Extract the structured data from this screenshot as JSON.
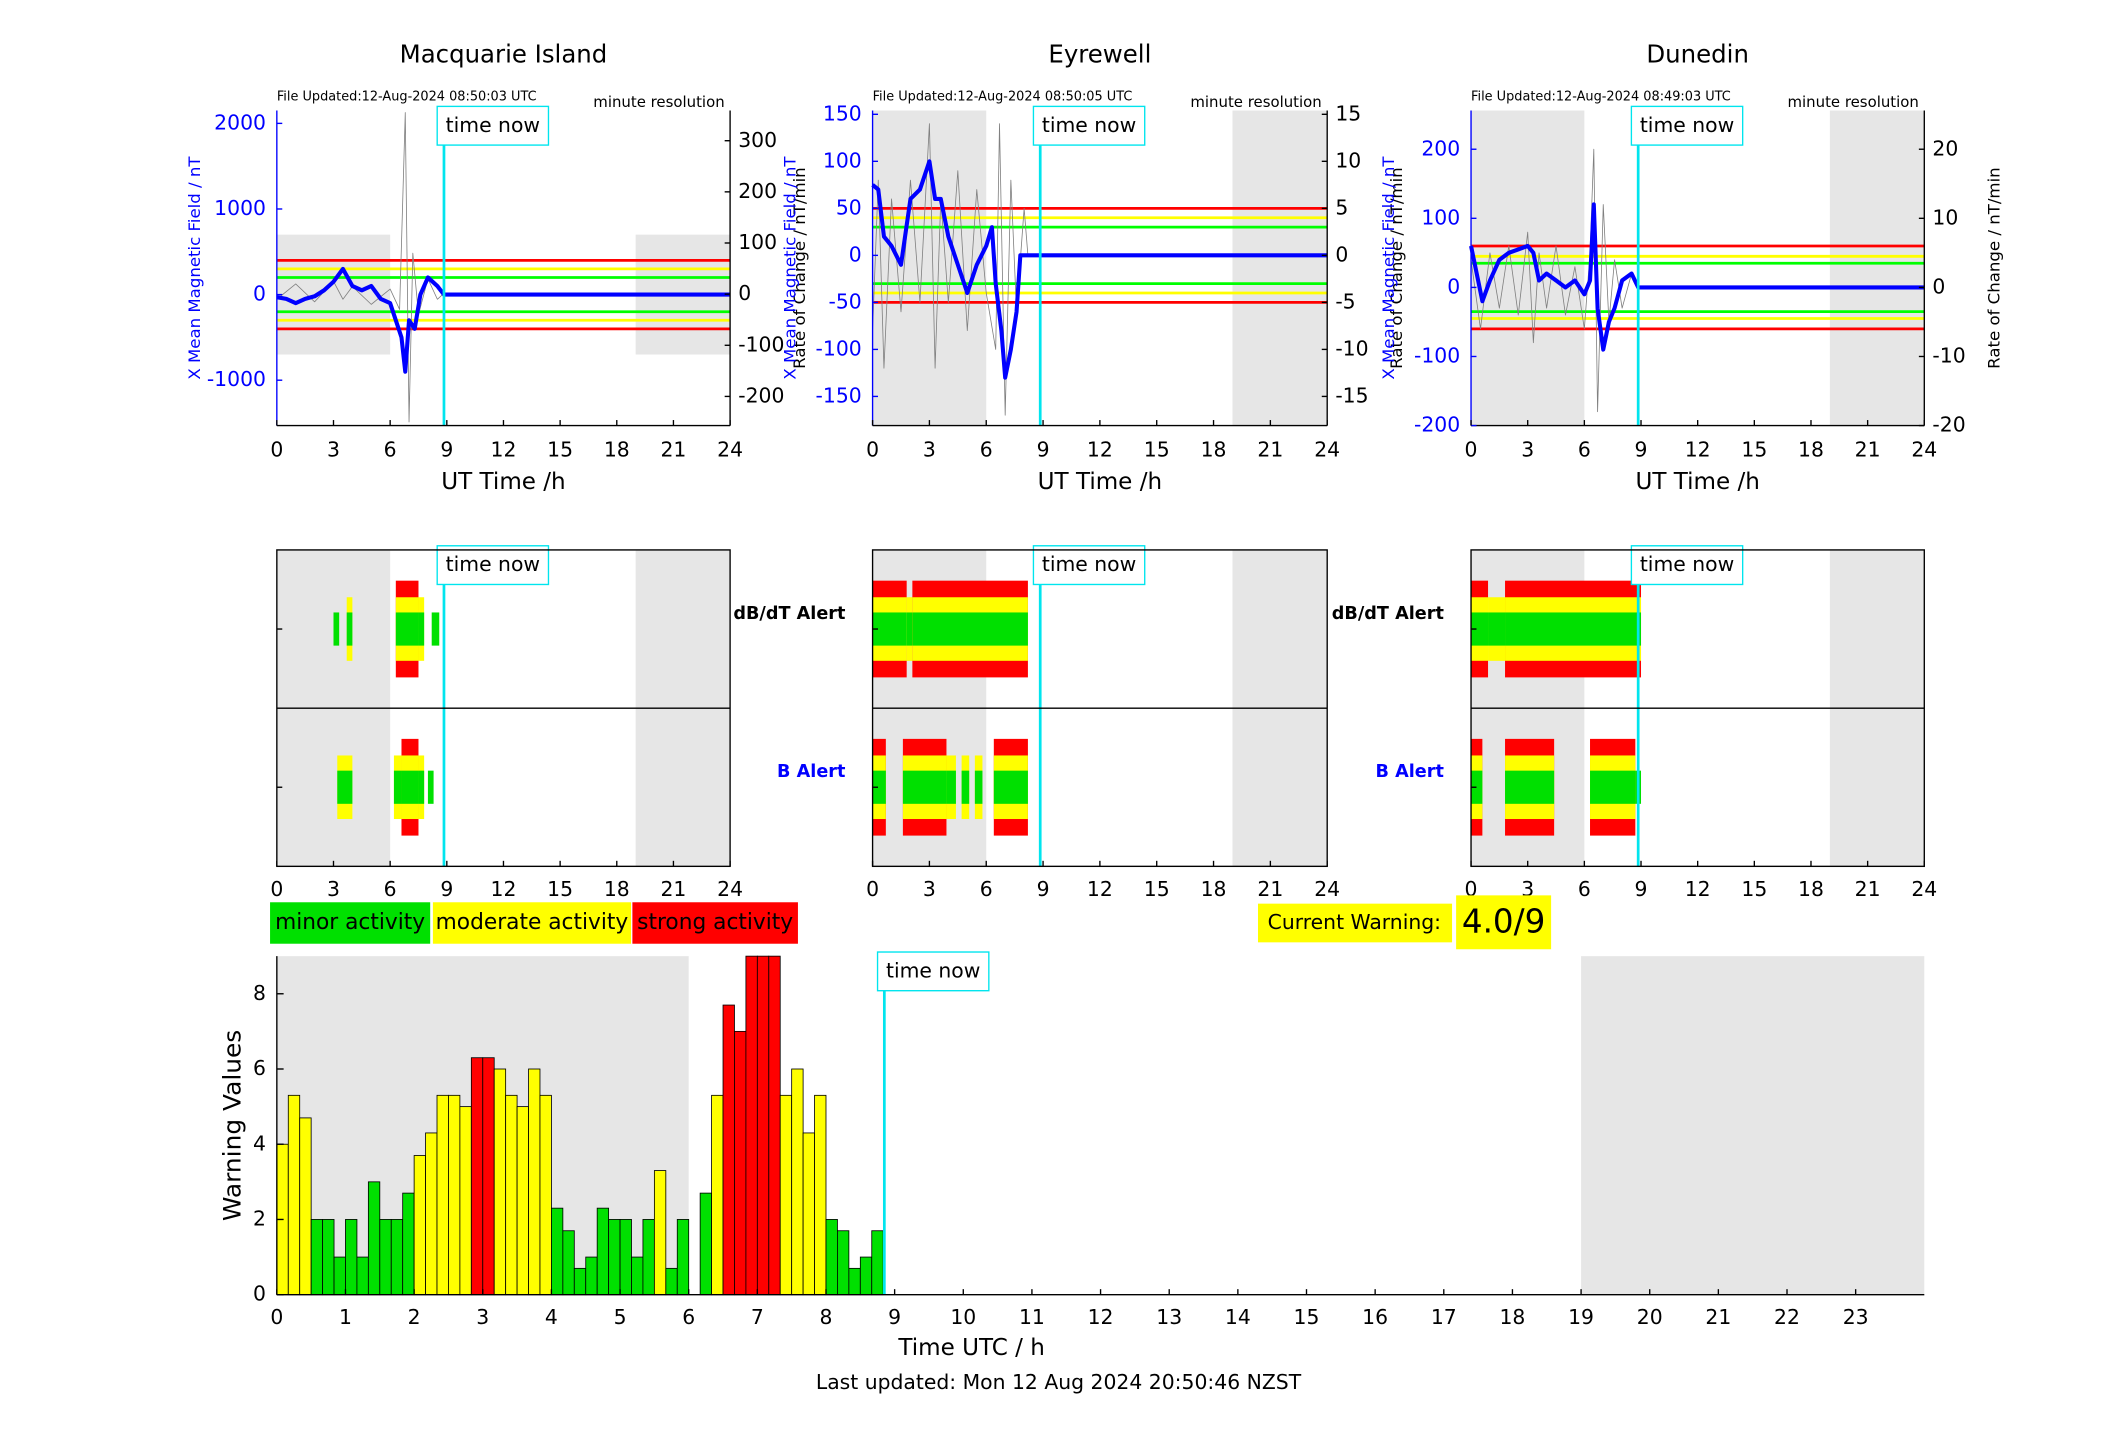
{
  "chart_data": [
    {
      "type": "line",
      "title": "Macquarie Island",
      "file_updated": "File Updated:12-Aug-2024 08:50:03 UTC",
      "resolution": "minute resolution",
      "time_now_label": "time now",
      "time_now": 8.85,
      "time_now_color": "#00e5ee",
      "ylabel": "X Mean Magnetic Field / nT",
      "y2label": "Rate of Change / nT/min",
      "xlabel": "UT Time /h",
      "xlim": [
        0,
        24
      ],
      "xticks": [
        0,
        3,
        6,
        9,
        12,
        15,
        18,
        21,
        24
      ],
      "ylim": [
        -1530,
        2150
      ],
      "yticks": [
        -1000,
        0,
        1000,
        2000
      ],
      "y2lim": [
        -257,
        359
      ],
      "y2ticks": [
        -200,
        -100,
        0,
        100,
        200,
        300
      ],
      "shading": [
        [
          0,
          6
        ],
        [
          19,
          24
        ]
      ],
      "shade_ylim": [
        -700,
        700
      ],
      "shading_color": "#e6e6e6",
      "thresholds": [
        {
          "color": "#ff0000",
          "values": [
            400,
            -400
          ]
        },
        {
          "color": "#ffff00",
          "values": [
            300,
            -300
          ]
        },
        {
          "color": "#00ff00",
          "values": [
            200,
            -200
          ]
        }
      ],
      "series": [
        {
          "color": "#808080",
          "axis": "y2",
          "x": [
            0,
            1,
            2,
            3,
            3.5,
            4,
            5,
            6,
            6.5,
            6.8,
            7,
            7.2,
            7.5,
            8,
            8.5,
            8.8
          ],
          "values": [
            -10,
            20,
            -15,
            25,
            -10,
            15,
            -20,
            10,
            -30,
            355,
            -250,
            80,
            -40,
            30,
            -10,
            0
          ]
        },
        {
          "color": "#0000ff",
          "axis": "y",
          "x": [
            0,
            0.5,
            1,
            1.5,
            2,
            2.5,
            3,
            3.5,
            4,
            4.5,
            5,
            5.5,
            6,
            6.3,
            6.6,
            6.8,
            7,
            7.3,
            7.6,
            8,
            8.5,
            8.85,
            24
          ],
          "values": [
            -30,
            -50,
            -100,
            -50,
            -20,
            50,
            150,
            300,
            100,
            50,
            100,
            -50,
            -100,
            -300,
            -500,
            -900,
            -300,
            -400,
            0,
            200,
            100,
            0,
            0
          ]
        }
      ]
    },
    {
      "type": "line",
      "title": "Eyrewell",
      "file_updated": "File Updated:12-Aug-2024 08:50:05 UTC",
      "resolution": "minute resolution",
      "time_now_label": "time now",
      "time_now": 8.85,
      "time_now_color": "#00e5ee",
      "ylabel": "X Mean Magnetic Field / nT",
      "y2label": "Rate of Change / nT/min",
      "xlabel": "UT Time /h",
      "xlim": [
        0,
        24
      ],
      "xticks": [
        0,
        3,
        6,
        9,
        12,
        15,
        18,
        21,
        24
      ],
      "ylim": [
        -181,
        154
      ],
      "yticks": [
        -150,
        -100,
        -50,
        0,
        50,
        100,
        150
      ],
      "y2lim": [
        -18.1,
        15.4
      ],
      "y2ticks": [
        -15,
        -10,
        -5,
        0,
        5,
        10,
        15
      ],
      "shading": [
        [
          0,
          6
        ],
        [
          19,
          24
        ]
      ],
      "shading_color": "#e6e6e6",
      "thresholds": [
        {
          "color": "#ff0000",
          "values": [
            50,
            -50
          ]
        },
        {
          "color": "#ffff00",
          "values": [
            40,
            -40
          ]
        },
        {
          "color": "#00ff00",
          "values": [
            30,
            -30
          ]
        }
      ],
      "series": [
        {
          "color": "#808080",
          "axis": "y2",
          "x": [
            0,
            0.3,
            0.6,
            1,
            1.5,
            2,
            2.5,
            3,
            3.3,
            3.6,
            4,
            4.5,
            5,
            5.5,
            6,
            6.5,
            6.7,
            7,
            7.3,
            7.6,
            8,
            8.2
          ],
          "values": [
            -8,
            8,
            -12,
            6,
            -6,
            8,
            -5,
            14,
            -12,
            6,
            -5,
            9,
            -8,
            7,
            -4,
            -10,
            14,
            -17,
            8,
            -6,
            5,
            0
          ]
        },
        {
          "color": "#0000ff",
          "axis": "y",
          "x": [
            0,
            0.3,
            0.6,
            1,
            1.5,
            2,
            2.5,
            3,
            3.3,
            3.6,
            4,
            4.5,
            5,
            5.5,
            6,
            6.3,
            6.5,
            6.8,
            7,
            7.3,
            7.6,
            7.8,
            24
          ],
          "values": [
            75,
            70,
            20,
            10,
            -10,
            60,
            70,
            100,
            60,
            60,
            20,
            -10,
            -40,
            -10,
            10,
            30,
            -30,
            -80,
            -130,
            -100,
            -60,
            0,
            0
          ]
        }
      ]
    },
    {
      "type": "line",
      "title": "Dunedin",
      "file_updated": "File Updated:12-Aug-2024 08:49:03 UTC",
      "resolution": "minute resolution",
      "time_now_label": "time now",
      "time_now": 8.85,
      "time_now_color": "#00e5ee",
      "ylabel": "X Mean Magnetic Field / nT",
      "y2label": "Rate of Change / nT/min",
      "xlabel": "UT Time /h",
      "xlim": [
        0,
        24
      ],
      "xticks": [
        0,
        3,
        6,
        9,
        12,
        15,
        18,
        21,
        24
      ],
      "ylim": [
        -200,
        256
      ],
      "yticks": [
        -200,
        -100,
        0,
        100,
        200
      ],
      "y2lim": [
        -20,
        25.6
      ],
      "y2ticks": [
        -20,
        -10,
        0,
        10,
        20
      ],
      "shading": [
        [
          0,
          6
        ],
        [
          19,
          24
        ]
      ],
      "shading_color": "#e6e6e6",
      "thresholds": [
        {
          "color": "#ff0000",
          "values": [
            60,
            -60
          ]
        },
        {
          "color": "#ffff00",
          "values": [
            45,
            -45
          ]
        },
        {
          "color": "#00ff00",
          "values": [
            35,
            -35
          ]
        }
      ],
      "series": [
        {
          "color": "#808080",
          "axis": "y2",
          "x": [
            0,
            0.5,
            1,
            1.5,
            2,
            2.5,
            3,
            3.3,
            3.6,
            4,
            4.5,
            5,
            5.5,
            6,
            6.3,
            6.5,
            6.7,
            7,
            7.3,
            7.6,
            8,
            8.5,
            8.85
          ],
          "values": [
            4,
            -6,
            5,
            -3,
            6,
            -4,
            8,
            -8,
            5,
            -3,
            6,
            -4,
            3,
            -6,
            5,
            20,
            -18,
            12,
            -5,
            4,
            -3,
            2,
            0
          ]
        },
        {
          "color": "#0000ff",
          "axis": "y",
          "x": [
            0,
            0.3,
            0.6,
            1,
            1.5,
            2,
            2.5,
            3,
            3.3,
            3.6,
            4,
            4.5,
            5,
            5.5,
            6,
            6.3,
            6.5,
            6.7,
            7,
            7.3,
            7.6,
            8,
            8.5,
            8.85,
            24
          ],
          "values": [
            60,
            20,
            -20,
            10,
            40,
            50,
            55,
            60,
            50,
            10,
            20,
            10,
            0,
            10,
            -10,
            10,
            120,
            -30,
            -90,
            -50,
            -30,
            10,
            20,
            0,
            0
          ]
        }
      ]
    },
    {
      "type": "alert",
      "time_now_label": "time now",
      "time_now": 8.85,
      "time_now_color": "#00e5ee",
      "xlim": [
        0,
        24
      ],
      "xticks": [
        0,
        3,
        6,
        9,
        12,
        15,
        18,
        21,
        24
      ],
      "shading": [
        [
          0,
          6
        ],
        [
          19,
          24
        ]
      ],
      "shading_color": "#e6e6e6",
      "alerts": [
        [
          [
            3.0,
            3.3,
            1
          ],
          [
            3.7,
            4.0,
            2
          ],
          [
            6.3,
            7.5,
            3
          ],
          [
            7.5,
            7.8,
            2
          ],
          [
            8.2,
            8.6,
            1
          ]
        ],
        [
          [
            3.2,
            4.0,
            2
          ],
          [
            6.2,
            6.6,
            2
          ],
          [
            6.6,
            7.5,
            3
          ],
          [
            7.5,
            7.8,
            2
          ],
          [
            8.0,
            8.3,
            1
          ]
        ]
      ]
    },
    {
      "type": "alert",
      "time_now_label": "time now",
      "time_now": 8.85,
      "time_now_color": "#00e5ee",
      "rows": [
        "dB/dT Alert",
        "B Alert"
      ],
      "xlim": [
        0,
        24
      ],
      "xticks": [
        0,
        3,
        6,
        9,
        12,
        15,
        18,
        21,
        24
      ],
      "shading": [
        [
          0,
          6
        ],
        [
          19,
          24
        ]
      ],
      "shading_color": "#e6e6e6",
      "alerts": [
        [
          [
            0,
            1.8,
            3
          ],
          [
            1.8,
            2.1,
            2
          ],
          [
            2.1,
            8.2,
            3
          ]
        ],
        [
          [
            0,
            0.7,
            3
          ],
          [
            1.6,
            3.9,
            3
          ],
          [
            3.9,
            4.4,
            2
          ],
          [
            4.7,
            5.1,
            2
          ],
          [
            5.4,
            5.8,
            2
          ],
          [
            6.4,
            8.2,
            3
          ]
        ]
      ]
    },
    {
      "type": "alert",
      "time_now_label": "time now",
      "time_now": 8.85,
      "time_now_color": "#00e5ee",
      "rows": [
        "dB/dT Alert",
        "B Alert"
      ],
      "xlim": [
        0,
        24
      ],
      "xticks": [
        0,
        3,
        6,
        9,
        12,
        15,
        18,
        21,
        24
      ],
      "shading": [
        [
          0,
          6
        ],
        [
          19,
          24
        ]
      ],
      "shading_color": "#e6e6e6",
      "alerts": [
        [
          [
            0,
            0.9,
            3
          ],
          [
            0.9,
            1.8,
            2
          ],
          [
            1.8,
            9.0,
            3
          ]
        ],
        [
          [
            0,
            0.6,
            3
          ],
          [
            1.8,
            4.4,
            3
          ],
          [
            6.3,
            8.7,
            3
          ],
          [
            8.7,
            9.0,
            1
          ]
        ]
      ]
    },
    {
      "type": "histogram",
      "ylabel": "Warning Values",
      "xlabel": "Time UTC / h",
      "time_now_label": "time now",
      "time_now": 8.85,
      "time_now_color": "#00e5ee",
      "xlim": [
        0,
        24
      ],
      "xticks": [
        0,
        1,
        2,
        3,
        4,
        5,
        6,
        7,
        8,
        9,
        10,
        11,
        12,
        13,
        14,
        15,
        16,
        17,
        18,
        19,
        20,
        21,
        22,
        23
      ],
      "ylim": [
        0,
        9
      ],
      "yticks": [
        0,
        2,
        4,
        6,
        8
      ],
      "shading": [
        [
          0,
          6
        ],
        [
          19,
          24
        ]
      ],
      "shading_color": "#e6e6e6",
      "bins": [
        0,
        0.1667,
        0.3333,
        0.5,
        0.6667,
        0.8333,
        1,
        1.1667,
        1.3333,
        1.5,
        1.6667,
        1.8333,
        2,
        2.1667,
        2.3333,
        2.5,
        2.6667,
        2.8333,
        3,
        3.1667,
        3.3333,
        3.5,
        3.6667,
        3.8333,
        4,
        4.1667,
        4.3333,
        4.5,
        4.6667,
        4.8333,
        5,
        5.1667,
        5.3333,
        5.5,
        5.6667,
        5.8333,
        6,
        6.1667,
        6.3333,
        6.5,
        6.6667,
        6.8333,
        7,
        7.1667,
        7.3333,
        7.5,
        7.6667,
        7.8333,
        8,
        8.1667,
        8.3333,
        8.5,
        8.6667,
        8.8333
      ],
      "values": [
        4.0,
        5.3,
        4.7,
        2,
        2,
        1,
        2,
        1,
        3,
        2,
        2,
        2.7,
        3.7,
        4.3,
        5.3,
        5.3,
        5,
        6.3,
        6.3,
        6,
        5.3,
        5,
        6,
        5.3,
        2.3,
        1.7,
        0.7,
        1,
        2.3,
        2,
        2,
        1,
        2,
        3.3,
        0.7,
        2,
        0,
        2.7,
        5.3,
        7.7,
        7,
        9,
        9,
        9,
        5.3,
        6,
        4.3,
        5.3,
        2,
        1.7,
        0.7,
        1,
        1.7
      ],
      "colors": [
        "#ffff00",
        "#ffff00",
        "#ffff00",
        "#00e000",
        "#00e000",
        "#00e000",
        "#00e000",
        "#00e000",
        "#00e000",
        "#00e000",
        "#00e000",
        "#00e000",
        "#ffff00",
        "#ffff00",
        "#ffff00",
        "#ffff00",
        "#ffff00",
        "#ff0000",
        "#ff0000",
        "#ffff00",
        "#ffff00",
        "#ffff00",
        "#ffff00",
        "#ffff00",
        "#00e000",
        "#00e000",
        "#00e000",
        "#00e000",
        "#00e000",
        "#00e000",
        "#00e000",
        "#00e000",
        "#00e000",
        "#ffff00",
        "#00e000",
        "#00e000",
        "#00e000",
        "#00e000",
        "#ffff00",
        "#ff0000",
        "#ff0000",
        "#ff0000",
        "#ff0000",
        "#ff0000",
        "#ffff00",
        "#ffff00",
        "#ffff00",
        "#ffff00",
        "#00e000",
        "#00e000",
        "#00e000",
        "#00e000",
        "#00e000"
      ]
    }
  ],
  "activity_legend": [
    {
      "name": "minor activity",
      "color": "#00e000"
    },
    {
      "name": "moderate activity",
      "color": "#ffff00"
    },
    {
      "name": "strong activity",
      "color": "#ff0000"
    }
  ],
  "current_warning": {
    "label": "Current Warning:",
    "value": "4.0/9",
    "color": "#ffff00"
  },
  "footer": "Last updated: Mon 12 Aug 2024 20:50:46 NZST"
}
